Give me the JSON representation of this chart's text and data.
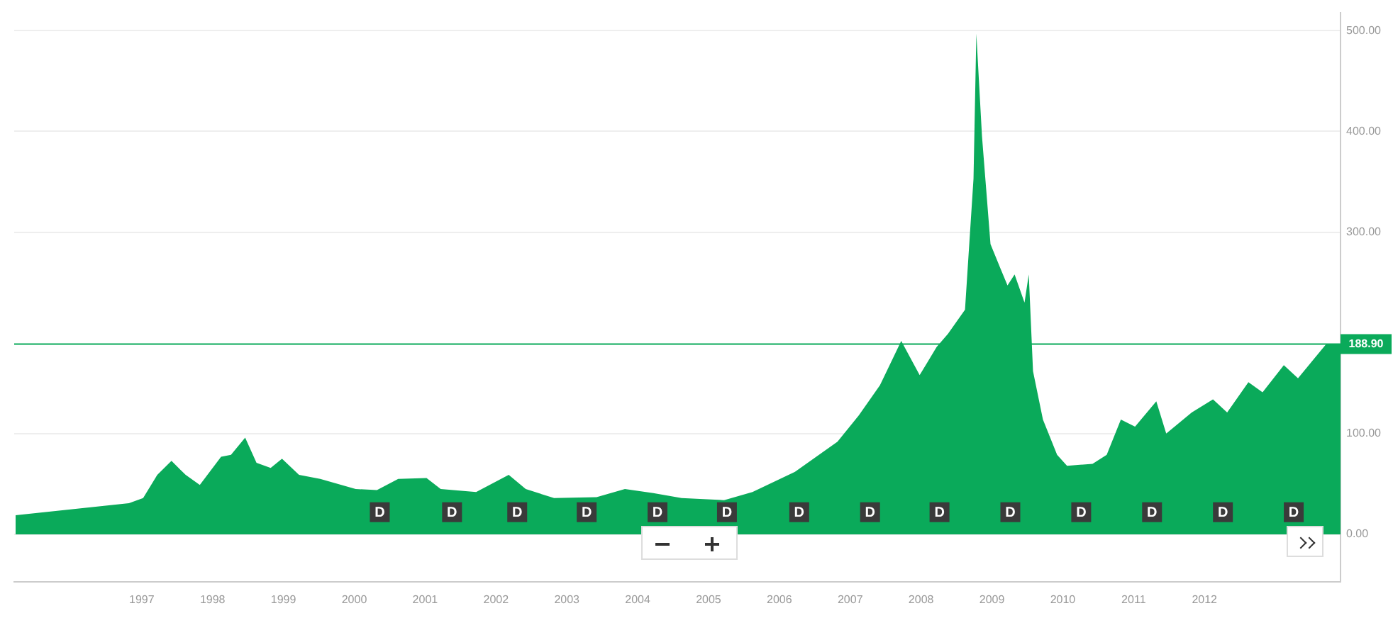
{
  "chart_data": {
    "type": "area",
    "color": "#0aaa5a",
    "marker": "none",
    "grid": "y",
    "x": [
      1995.22,
      1996.02,
      1996.82,
      1997.02,
      1997.22,
      1997.42,
      1997.62,
      1997.82,
      1998.12,
      1998.26,
      1998.46,
      1998.62,
      1998.82,
      1998.98,
      1999.22,
      1999.52,
      2000.02,
      2000.32,
      2000.62,
      2001.02,
      2001.22,
      2001.72,
      2002.18,
      2002.42,
      2002.82,
      2003.42,
      2003.82,
      2004.22,
      2004.62,
      2005.22,
      2005.62,
      2006.22,
      2006.82,
      2007.12,
      2007.42,
      2007.72,
      2007.98,
      2008.22,
      2008.38,
      2008.62,
      2008.74,
      2008.78,
      2008.86,
      2008.98,
      2009.12,
      2009.22,
      2009.32,
      2009.46,
      2009.52,
      2009.58,
      2009.72,
      2009.92,
      2010.06,
      2010.42,
      2010.62,
      2010.82,
      2011.02,
      2011.32,
      2011.46,
      2011.82,
      2012.12,
      2012.32,
      2012.62,
      2012.82,
      2013.12,
      2013.32,
      2013.72,
      2013.92
    ],
    "values": [
      19,
      25,
      31,
      36,
      59,
      73,
      59,
      49,
      77,
      79,
      96,
      71,
      66,
      75,
      59,
      55,
      45,
      44,
      55,
      56,
      45,
      42,
      59,
      45,
      36,
      37,
      45,
      41,
      36,
      34,
      42,
      62,
      92,
      118,
      148,
      192,
      158,
      186,
      199,
      223,
      353,
      497,
      395,
      288,
      264,
      247,
      258,
      230,
      258,
      162,
      114,
      79,
      68,
      70,
      79,
      114,
      107,
      132,
      100,
      121,
      134,
      121,
      151,
      141,
      168,
      155,
      189,
      189
    ],
    "xlim": [
      1995.2,
      2013.92
    ],
    "ylim": [
      -47,
      518
    ],
    "xticks": [
      1997,
      1998,
      1999,
      2000,
      2001,
      2002,
      2003,
      2004,
      2005,
      2006,
      2007,
      2008,
      2009,
      2010,
      2011,
      2012
    ],
    "yticks": [
      {
        "value": 0,
        "label": "0.00"
      },
      {
        "value": 100,
        "label": "100.00"
      },
      {
        "value": 300,
        "label": "300.00"
      },
      {
        "value": 400,
        "label": "400.00"
      },
      {
        "value": 500,
        "label": "500.00"
      }
    ],
    "ref_lines": [
      {
        "axis": "y",
        "value": 188.9,
        "label": "188.90",
        "color": "#0aaa5a"
      }
    ],
    "annotations": [
      {
        "text": "D",
        "x": 2000.36,
        "y": 22
      },
      {
        "text": "D",
        "x": 2001.38,
        "y": 22
      },
      {
        "text": "D",
        "x": 2002.3,
        "y": 22
      },
      {
        "text": "D",
        "x": 2003.28,
        "y": 22
      },
      {
        "text": "D",
        "x": 2004.28,
        "y": 22
      },
      {
        "text": "D",
        "x": 2005.26,
        "y": 22
      },
      {
        "text": "D",
        "x": 2006.28,
        "y": 22
      },
      {
        "text": "D",
        "x": 2007.28,
        "y": 22
      },
      {
        "text": "D",
        "x": 2008.26,
        "y": 22
      },
      {
        "text": "D",
        "x": 2009.26,
        "y": 22
      },
      {
        "text": "D",
        "x": 2010.26,
        "y": 22
      },
      {
        "text": "D",
        "x": 2011.26,
        "y": 22
      },
      {
        "text": "D",
        "x": 2012.26,
        "y": 22
      },
      {
        "text": "D",
        "x": 2013.26,
        "y": 22
      }
    ]
  }
}
